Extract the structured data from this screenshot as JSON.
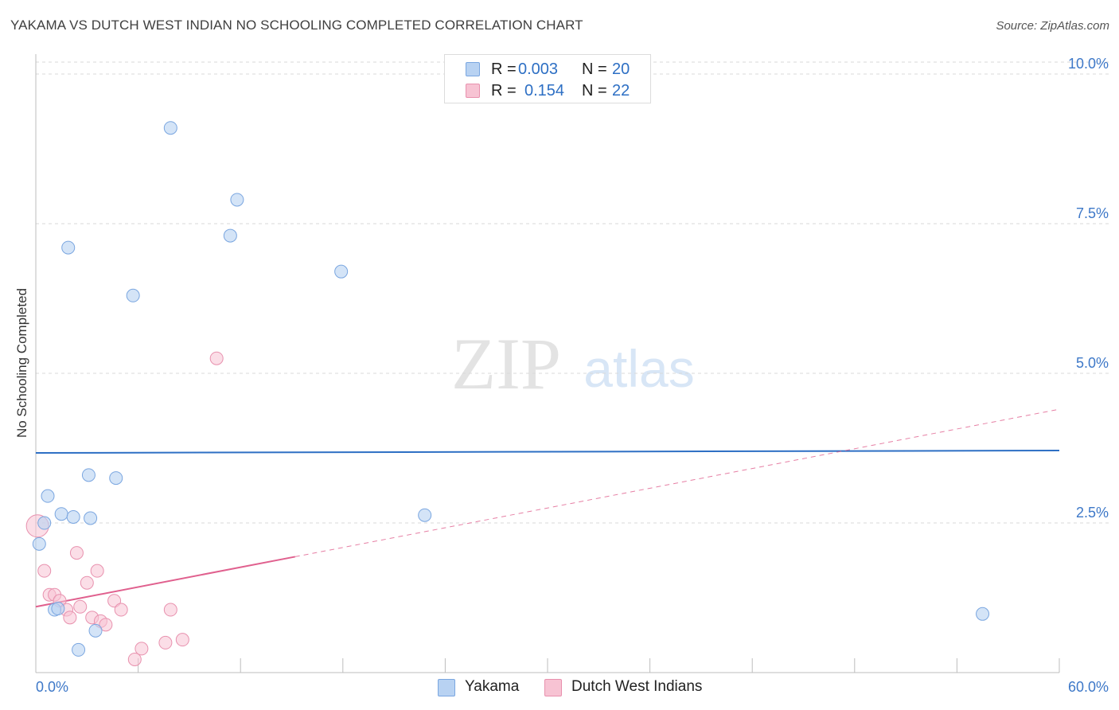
{
  "header": {
    "title": "YAKAMA VS DUTCH WEST INDIAN NO SCHOOLING COMPLETED CORRELATION CHART",
    "source": "Source: ZipAtlas.com"
  },
  "watermark": {
    "zip": "ZIP",
    "atlas": "atlas"
  },
  "legend_top": [
    {
      "r_label": "R =",
      "r_value": "0.003",
      "n_label": "N =",
      "n_value": "20"
    },
    {
      "r_label": "R =",
      "r_value": "0.154",
      "n_label": "N =",
      "n_value": "22"
    }
  ],
  "legend_bottom": [
    "Yakama",
    "Dutch West Indians"
  ],
  "colors": {
    "yakama_fill": "#b8d2f2",
    "yakama_stroke": "#7aa6e0",
    "yakama_line": "#2d6fc4",
    "dutch_fill": "#f7c3d3",
    "dutch_stroke": "#e891ae",
    "dutch_line": "#e0608e",
    "tick_label": "#3d78c8",
    "grid": "#d9d9d9",
    "axis": "#bdbdbd"
  },
  "chart_data": {
    "type": "scatter",
    "title": "YAKAMA VS DUTCH WEST INDIAN NO SCHOOLING COMPLETED CORRELATION CHART",
    "xlabel": "",
    "ylabel": "No Schooling Completed",
    "xlim": [
      0,
      60
    ],
    "ylim": [
      0,
      10.2
    ],
    "x_tick_labels": [
      "0.0%",
      "60.0%"
    ],
    "y_ticks": [
      2.5,
      5.0,
      7.5,
      10.0
    ],
    "y_tick_labels": [
      "2.5%",
      "5.0%",
      "7.5%",
      "10.0%"
    ],
    "grid": "horizontal dashed",
    "legend_position": "top-center",
    "series": [
      {
        "name": "Yakama",
        "R": 0.003,
        "N": 20,
        "points": [
          [
            7.9,
            9.1
          ],
          [
            11.8,
            7.9
          ],
          [
            1.9,
            7.1
          ],
          [
            11.4,
            7.3
          ],
          [
            17.9,
            6.7
          ],
          [
            5.7,
            6.3
          ],
          [
            3.1,
            3.3
          ],
          [
            4.7,
            3.25
          ],
          [
            0.7,
            2.95
          ],
          [
            1.5,
            2.65
          ],
          [
            2.2,
            2.6
          ],
          [
            3.2,
            2.58
          ],
          [
            22.8,
            2.63
          ],
          [
            0.5,
            2.5
          ],
          [
            0.2,
            2.15
          ],
          [
            1.1,
            1.05
          ],
          [
            1.3,
            1.07
          ],
          [
            3.5,
            0.7
          ],
          [
            2.5,
            0.38
          ],
          [
            55.5,
            0.98
          ]
        ],
        "trend": {
          "x": [
            0,
            60
          ],
          "y": [
            3.67,
            3.71
          ]
        }
      },
      {
        "name": "Dutch West Indians",
        "R": 0.154,
        "N": 22,
        "points": [
          [
            0.1,
            2.45
          ],
          [
            10.6,
            5.25
          ],
          [
            2.4,
            2.0
          ],
          [
            0.5,
            1.7
          ],
          [
            3.6,
            1.7
          ],
          [
            3.0,
            1.5
          ],
          [
            0.8,
            1.3
          ],
          [
            1.1,
            1.3
          ],
          [
            1.4,
            1.2
          ],
          [
            4.6,
            1.2
          ],
          [
            1.8,
            1.05
          ],
          [
            2.6,
            1.1
          ],
          [
            5.0,
            1.05
          ],
          [
            7.9,
            1.05
          ],
          [
            2.0,
            0.92
          ],
          [
            3.3,
            0.92
          ],
          [
            3.8,
            0.86
          ],
          [
            4.1,
            0.8
          ],
          [
            8.6,
            0.55
          ],
          [
            7.6,
            0.5
          ],
          [
            6.2,
            0.4
          ],
          [
            5.8,
            0.22
          ]
        ],
        "trend": {
          "x": [
            0,
            60
          ],
          "y": [
            1.1,
            4.4
          ],
          "solid_until_x": 15.2
        }
      }
    ]
  }
}
